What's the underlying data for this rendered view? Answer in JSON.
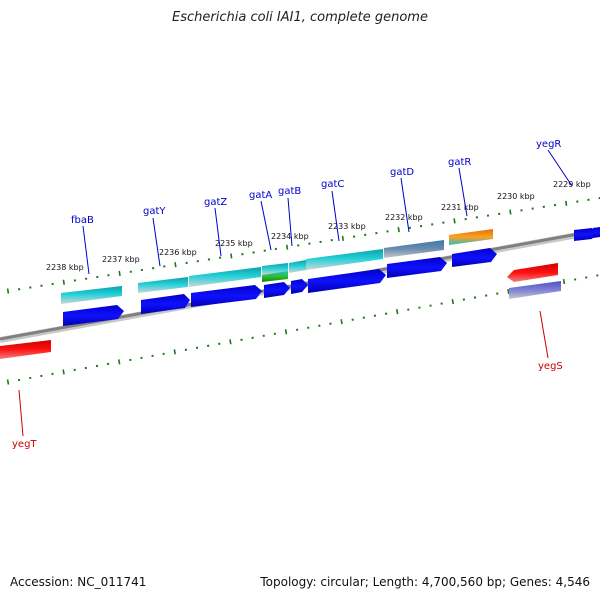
{
  "title": "Escherichia coli IAI1, complete genome",
  "footer": {
    "accession": "Accession: NC_011741",
    "summary": "Topology: circular; Length: 4,700,560 bp; Genes: 4,546"
  },
  "ruler": {
    "labels": [
      "2238 kbp",
      "2237 kbp",
      "2236 kbp",
      "2235 kbp",
      "2234 kbp",
      "2233 kbp",
      "2232 kbp",
      "2231 kbp",
      "2230 kbp",
      "2229 kbp"
    ]
  },
  "genes": [
    {
      "name": "fbaB",
      "color": "#0000cc"
    },
    {
      "name": "gatY",
      "color": "#0000cc"
    },
    {
      "name": "gatZ",
      "color": "#0000cc"
    },
    {
      "name": "gatA",
      "color": "#0000cc"
    },
    {
      "name": "gatB",
      "color": "#0000cc"
    },
    {
      "name": "gatC",
      "color": "#0000cc"
    },
    {
      "name": "gatD",
      "color": "#0000cc"
    },
    {
      "name": "gatR",
      "color": "#0000cc"
    },
    {
      "name": "yegR",
      "color": "#0000cc"
    },
    {
      "name": "yegS",
      "color": "#cc0000"
    },
    {
      "name": "yegT",
      "color": "#cc0000"
    }
  ],
  "colors": {
    "forward_gene": "#0000ee",
    "reverse_gene": "#ee0000",
    "cds_feature": "#20c0c8",
    "backbone": "#808080",
    "tick": "#1a7a1a"
  }
}
